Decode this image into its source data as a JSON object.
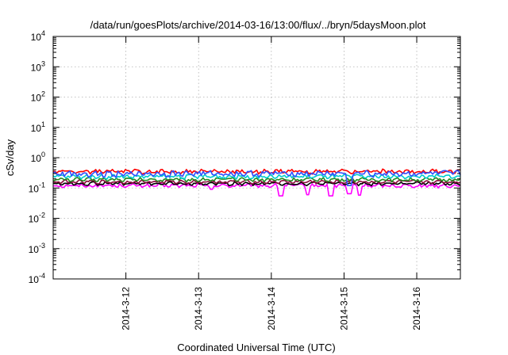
{
  "chart_data": {
    "type": "line",
    "title": "/data/run/goesPlots/archive/2014-03-16/13:00/flux/../bryn/5daysMoon.plot",
    "xlabel": "Coordinated Universal Time (UTC)",
    "ylabel": "cSv/day",
    "yscale": "log",
    "ylim": [
      0.0001,
      10000
    ],
    "xlim": [
      0,
      5.6
    ],
    "x_ticks": [
      {
        "x": 1,
        "label": "2014-3-12"
      },
      {
        "x": 2,
        "label": "2014-3-13"
      },
      {
        "x": 3,
        "label": "2014-3-14"
      },
      {
        "x": 4,
        "label": "2014-3-15"
      },
      {
        "x": 5,
        "label": "2014-3-16"
      }
    ],
    "y_ticks": [
      {
        "value": 0.0001,
        "base": "10",
        "exp": "-4"
      },
      {
        "value": 0.001,
        "base": "10",
        "exp": "-3"
      },
      {
        "value": 0.01,
        "base": "10",
        "exp": "-2"
      },
      {
        "value": 0.1,
        "base": "10",
        "exp": "-1"
      },
      {
        "value": 1,
        "base": "10",
        "exp": "0"
      },
      {
        "value": 10,
        "base": "10",
        "exp": "1"
      },
      {
        "value": 100,
        "base": "10",
        "exp": "2"
      },
      {
        "value": 1000,
        "base": "10",
        "exp": "3"
      },
      {
        "value": 10000,
        "base": "10",
        "exp": "4"
      }
    ],
    "grid": true,
    "series": [
      {
        "color": "#ff00ff",
        "base": 0.12,
        "noise": 0.12,
        "dips": [
          {
            "x": 3.13,
            "v": 0.055
          },
          {
            "x": 3.5,
            "v": 0.06
          },
          {
            "x": 3.82,
            "v": 0.055
          },
          {
            "x": 4.07,
            "v": 0.065
          },
          {
            "x": 4.22,
            "v": 0.058
          },
          {
            "x": 2.18,
            "v": 0.09
          }
        ]
      },
      {
        "color": "#000000",
        "base": 0.14,
        "noise": 0.1,
        "dips": []
      },
      {
        "color": "#8b0a3c",
        "base": 0.16,
        "noise": 0.1,
        "dips": []
      },
      {
        "color": "#228b22",
        "base": 0.19,
        "noise": 0.12,
        "dips": []
      },
      {
        "color": "#00cccc",
        "base": 0.24,
        "noise": 0.14,
        "dips": []
      },
      {
        "color": "#ff0000",
        "base": 0.35,
        "noise": 0.14,
        "dips": []
      },
      {
        "color": "#3050ff",
        "base": 0.3,
        "noise": 0.2,
        "dips": [
          {
            "x": 4.07,
            "v": 0.12
          }
        ]
      }
    ]
  }
}
